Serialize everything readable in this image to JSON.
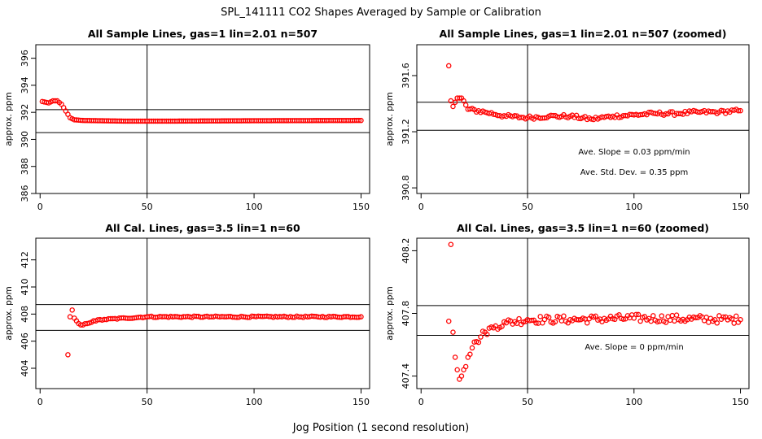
{
  "title": "SPL_141111  CO2 Shapes Averaged by Sample or Calibration",
  "xlabel": "Jog Position (1 second resolution)",
  "chart_data": [
    {
      "type": "scatter",
      "title": "All Sample Lines, gas=1 lin=2.01 n=507",
      "ylabel": "approx. ppm",
      "xlim": [
        -2,
        154
      ],
      "ylim": [
        386,
        397
      ],
      "xticks": [
        0,
        50,
        100,
        150
      ],
      "yticks": [
        386,
        388,
        390,
        392,
        394,
        396
      ],
      "hlines": [
        392.2,
        390.5
      ],
      "vline": 50,
      "annotations": [],
      "series": [
        {
          "x_start": 1,
          "x_end": 150,
          "anchors": [
            [
              1,
              392.8
            ],
            [
              4,
              392.7
            ],
            [
              6,
              392.85
            ],
            [
              8,
              392.85
            ],
            [
              10,
              392.6
            ],
            [
              12,
              392.1
            ],
            [
              14,
              391.6
            ],
            [
              16,
              391.45
            ],
            [
              20,
              391.4
            ],
            [
              40,
              391.35
            ],
            [
              60,
              391.35
            ],
            [
              100,
              391.38
            ],
            [
              150,
              391.4
            ]
          ]
        }
      ]
    },
    {
      "type": "scatter",
      "title": "All Sample Lines, gas=1 lin=2.01 n=507 (zoomed)",
      "ylabel": "approx. ppm",
      "xlim": [
        -2,
        154
      ],
      "ylim": [
        390.76,
        391.82
      ],
      "xticks": [
        0,
        50,
        100,
        150
      ],
      "yticks": [
        390.8,
        391.2,
        391.6
      ],
      "hlines": [
        391.41,
        391.21
      ],
      "vline": 50,
      "annotations": [
        "Ave. Slope =  0.03  ppm/min",
        "Ave. Std. Dev. =  0.35  ppm"
      ],
      "series": [
        {
          "x_start": 13,
          "x_end": 150,
          "anchors": [
            [
              13,
              391.67
            ],
            [
              14,
              391.42
            ],
            [
              15,
              391.38
            ],
            [
              17,
              391.44
            ],
            [
              19,
              391.44
            ],
            [
              20,
              391.42
            ],
            [
              22,
              391.36
            ],
            [
              30,
              391.34
            ],
            [
              40,
              391.31
            ],
            [
              50,
              391.3
            ],
            [
              60,
              391.31
            ],
            [
              70,
              391.31
            ],
            [
              80,
              391.29
            ],
            [
              90,
              391.31
            ],
            [
              100,
              391.32
            ],
            [
              110,
              391.33
            ],
            [
              120,
              391.33
            ],
            [
              130,
              391.34
            ],
            [
              140,
              391.34
            ],
            [
              150,
              391.35
            ]
          ],
          "jitter": 0.013
        }
      ]
    },
    {
      "type": "scatter",
      "title": "All Cal. Lines, gas=3.5 lin=1 n=60",
      "ylabel": "approx. ppm",
      "xlim": [
        -2,
        154
      ],
      "ylim": [
        402.5,
        413.6
      ],
      "xticks": [
        0,
        50,
        100,
        150
      ],
      "yticks": [
        404,
        406,
        408,
        410,
        412
      ],
      "hlines": [
        408.7,
        406.8
      ],
      "vline": 50,
      "annotations": [],
      "series": [
        {
          "x_start": 13,
          "x_end": 150,
          "anchors": [
            [
              13,
              405
            ],
            [
              14,
              407.8
            ],
            [
              15,
              408.3
            ],
            [
              16,
              407.7
            ],
            [
              17,
              407.5
            ],
            [
              18,
              407.3
            ],
            [
              19,
              407.2
            ],
            [
              20,
              407.2
            ],
            [
              22,
              407.3
            ],
            [
              25,
              407.5
            ],
            [
              30,
              407.6
            ],
            [
              40,
              407.7
            ],
            [
              50,
              407.8
            ],
            [
              80,
              407.8
            ],
            [
              150,
              407.8
            ]
          ],
          "jitter": 0.05
        }
      ]
    },
    {
      "type": "scatter",
      "title": "All Cal. Lines, gas=3.5 lin=1 n=60 (zoomed)",
      "ylabel": "approx. ppm",
      "xlim": [
        -2,
        154
      ],
      "ylim": [
        407.32,
        408.28
      ],
      "xticks": [
        0,
        50,
        100,
        150
      ],
      "yticks": [
        407.4,
        407.8,
        408.2
      ],
      "hlines": [
        407.85,
        407.66
      ],
      "vline": 50,
      "annotations": [
        "Ave. Slope =  0  ppm/min"
      ],
      "series": [
        {
          "x_start": 13,
          "x_end": 150,
          "anchors": [
            [
              13,
              407.75
            ],
            [
              14,
              408.24
            ],
            [
              15,
              407.68
            ],
            [
              16,
              407.52
            ],
            [
              17,
              407.44
            ],
            [
              18,
              407.38
            ],
            [
              19,
              407.4
            ],
            [
              20,
              407.44
            ],
            [
              22,
              407.52
            ],
            [
              24,
              407.58
            ],
            [
              26,
              407.62
            ],
            [
              30,
              407.68
            ],
            [
              35,
              407.72
            ],
            [
              40,
              407.74
            ],
            [
              50,
              407.76
            ],
            [
              70,
              407.76
            ],
            [
              100,
              407.77
            ],
            [
              150,
              407.76
            ]
          ],
          "jitter": 0.025
        }
      ]
    }
  ]
}
